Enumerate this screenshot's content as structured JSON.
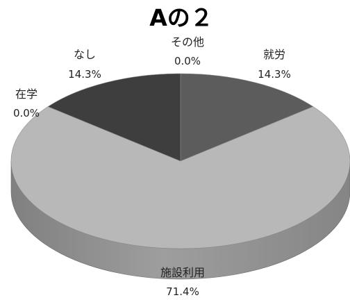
{
  "chart_data": {
    "type": "pie",
    "title": "Aの２",
    "style": "3d",
    "slices": [
      {
        "label": "就労",
        "value": 14.3,
        "value_label": "14.3%",
        "color": "#5c5c5c"
      },
      {
        "label": "施設利用",
        "value": 71.4,
        "value_label": "71.4%",
        "color": "#b8b8b8"
      },
      {
        "label": "在学",
        "value": 0.0,
        "value_label": "0.0%",
        "color": "#9a9a9a"
      },
      {
        "label": "なし",
        "value": 14.3,
        "value_label": "14.3%",
        "color": "#3e3e3e"
      },
      {
        "label": "その他",
        "value": 0.0,
        "value_label": "0.0%",
        "color": "#7a7a7a"
      }
    ]
  }
}
